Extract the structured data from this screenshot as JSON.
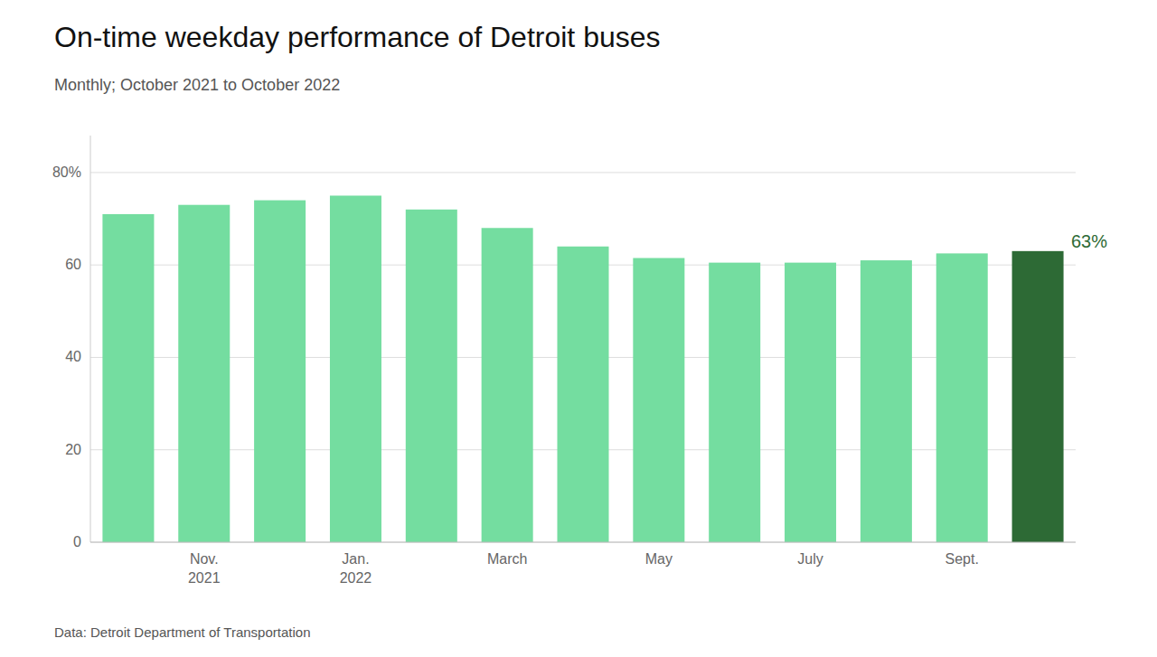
{
  "chart_data": {
    "type": "bar",
    "title": "On-time weekday performance of Detroit buses",
    "subtitle": "Monthly; October 2021 to October 2022",
    "footnote": "Data: Detroit Department of Transportation",
    "categories": [
      null,
      "Nov.\n2021",
      null,
      "Jan.\n2022",
      null,
      "March",
      null,
      "May",
      null,
      "July",
      null,
      "Sept.",
      null
    ],
    "values": [
      71,
      73,
      74,
      75,
      72,
      68,
      64,
      61.5,
      60.5,
      60.5,
      61,
      62.5,
      63
    ],
    "colors": [
      "#74dda0",
      "#74dda0",
      "#74dda0",
      "#74dda0",
      "#74dda0",
      "#74dda0",
      "#74dda0",
      "#74dda0",
      "#74dda0",
      "#74dda0",
      "#74dda0",
      "#74dda0",
      "#2d6a35"
    ],
    "annotations": [
      {
        "text": "63%",
        "index": 12
      }
    ],
    "ylim": [
      0,
      88
    ],
    "yticks": [
      0,
      20,
      40,
      60,
      {
        "value": 80,
        "label": "80%"
      }
    ],
    "grid": true
  }
}
